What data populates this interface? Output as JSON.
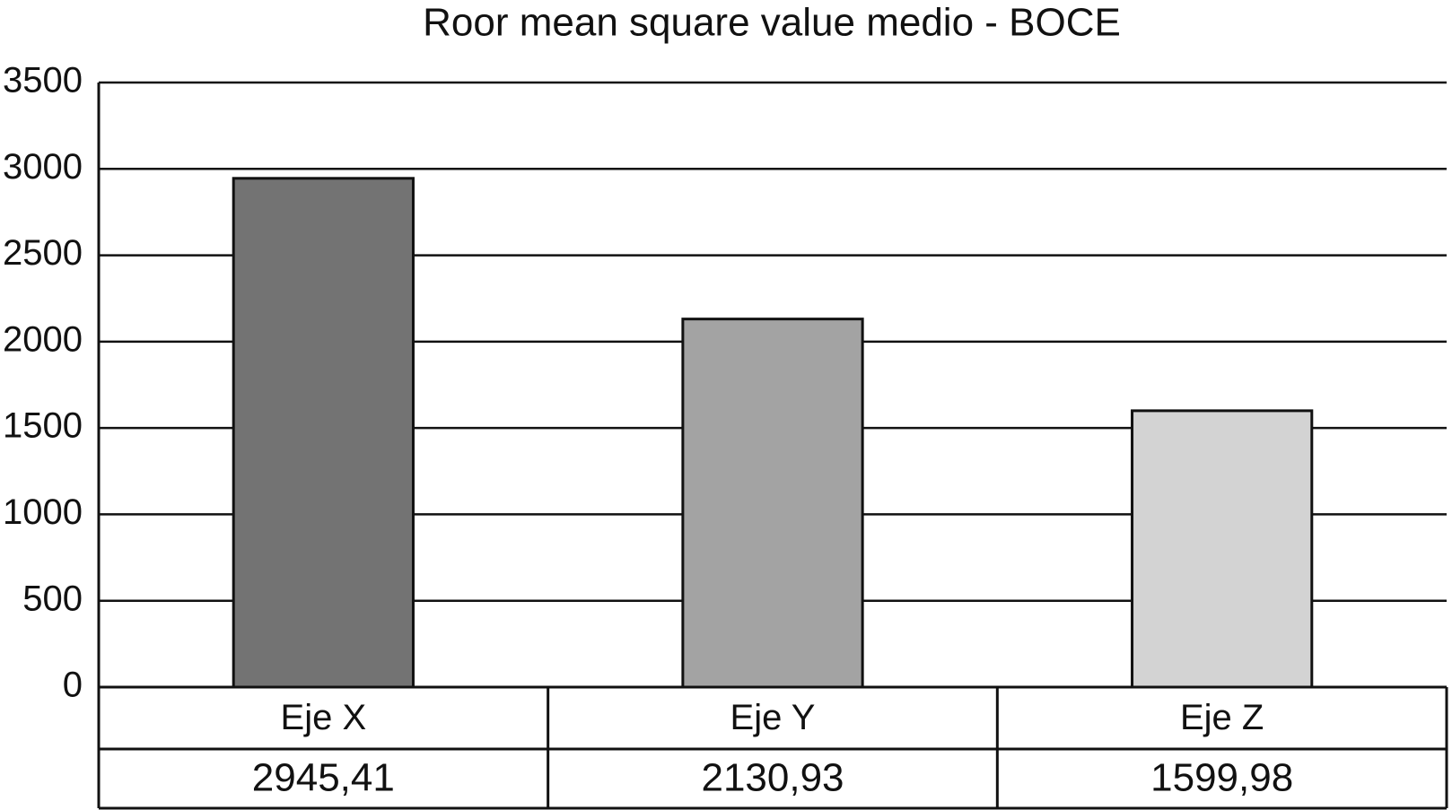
{
  "chart_data": {
    "type": "bar",
    "title": "Roor mean square value medio - BOCE",
    "categories": [
      "Eje X",
      "Eje Y",
      "Eje Z"
    ],
    "values": [
      2945.41,
      2130.93,
      1599.98
    ],
    "value_labels": [
      "2945,41",
      "2130,93",
      "1599,98"
    ],
    "colors": [
      "#737373",
      "#a3a3a3",
      "#d3d3d3"
    ],
    "ylim": [
      0,
      3500
    ],
    "yticks": [
      0,
      500,
      1000,
      1500,
      2000,
      2500,
      3000,
      3500
    ],
    "grid": true
  }
}
